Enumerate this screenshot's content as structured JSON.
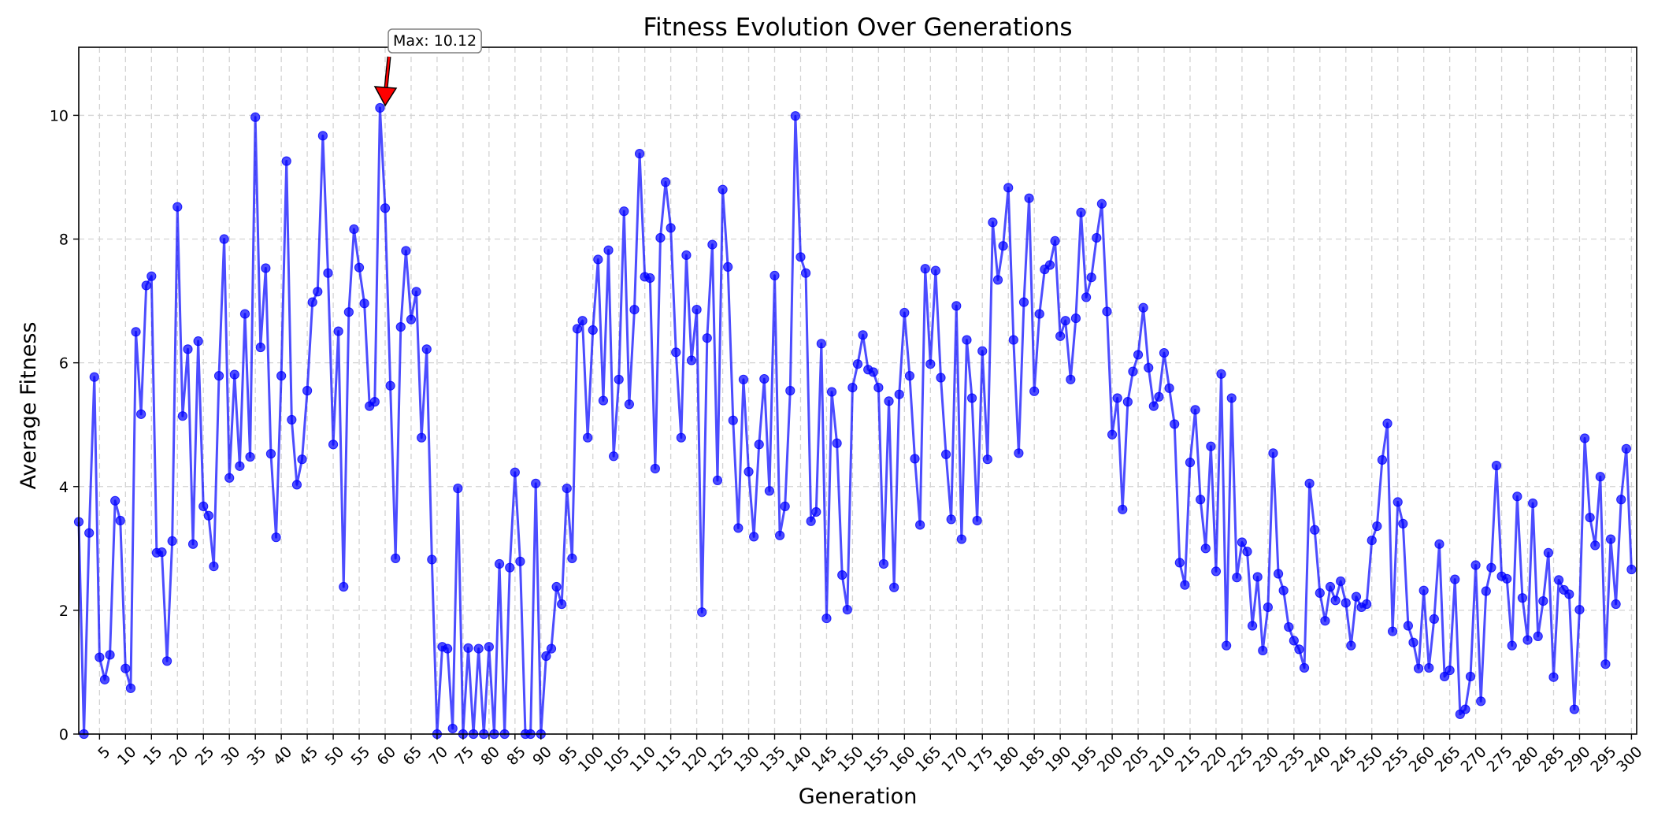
{
  "chart_data": {
    "type": "line",
    "title": "Fitness Evolution Over Generations",
    "xlabel": "Generation",
    "ylabel": "Average Fitness",
    "xlim": [
      1,
      301
    ],
    "ylim": [
      0,
      11.1
    ],
    "xticks": [
      5,
      10,
      15,
      20,
      25,
      30,
      35,
      40,
      45,
      50,
      55,
      60,
      65,
      70,
      75,
      80,
      85,
      90,
      95,
      100,
      105,
      110,
      115,
      120,
      125,
      130,
      135,
      140,
      145,
      150,
      155,
      160,
      165,
      170,
      175,
      180,
      185,
      190,
      195,
      200,
      205,
      210,
      215,
      220,
      225,
      230,
      235,
      240,
      245,
      250,
      255,
      260,
      265,
      270,
      275,
      280,
      285,
      290,
      295,
      300
    ],
    "yticks": [
      0,
      2,
      4,
      6,
      8,
      10
    ],
    "grid": true,
    "x_start": 1,
    "series": [
      {
        "color": "#0000ff",
        "values": [
          3.43,
          0.0,
          3.25,
          5.77,
          1.24,
          0.88,
          1.28,
          3.77,
          3.45,
          1.06,
          0.74,
          6.5,
          5.17,
          7.25,
          7.4,
          2.93,
          2.94,
          1.18,
          3.12,
          8.52,
          5.14,
          6.22,
          3.07,
          6.35,
          3.68,
          3.53,
          2.71,
          5.79,
          8.0,
          4.14,
          5.81,
          4.33,
          6.79,
          4.48,
          9.97,
          6.25,
          7.53,
          4.53,
          3.18,
          5.79,
          9.26,
          5.08,
          4.03,
          4.44,
          5.55,
          6.98,
          7.15,
          9.67,
          7.45,
          4.68,
          6.51,
          2.38,
          6.82,
          8.16,
          7.54,
          6.96,
          5.3,
          5.37,
          10.12,
          8.5,
          5.63,
          2.84,
          6.58,
          7.81,
          6.7,
          7.15,
          4.79,
          6.22,
          2.82,
          0.0,
          1.41,
          1.38,
          0.09,
          3.97,
          0.0,
          1.39,
          0.0,
          1.38,
          0.0,
          1.41,
          0.0,
          2.75,
          0.0,
          2.69,
          4.23,
          2.79,
          0.0,
          0.0,
          4.05,
          0.0,
          1.26,
          1.38,
          2.38,
          2.1,
          3.97,
          2.84,
          6.55,
          6.68,
          4.79,
          6.53,
          7.67,
          5.39,
          7.82,
          4.49,
          5.73,
          8.45,
          5.33,
          6.86,
          9.38,
          7.39,
          7.37,
          4.29,
          8.02,
          8.92,
          8.18,
          6.17,
          4.79,
          7.74,
          6.04,
          6.86,
          1.97,
          6.4,
          7.91,
          4.1,
          8.8,
          7.55,
          5.07,
          3.33,
          5.73,
          4.24,
          3.19,
          4.68,
          5.74,
          3.93,
          7.41,
          3.21,
          3.68,
          5.55,
          9.99,
          7.71,
          7.45,
          3.44,
          3.59,
          6.31,
          1.87,
          5.53,
          4.7,
          2.57,
          2.01,
          5.6,
          5.98,
          6.45,
          5.89,
          5.85,
          5.6,
          2.75,
          5.38,
          2.37,
          5.49,
          6.81,
          5.79,
          4.45,
          3.38,
          7.52,
          5.98,
          7.49,
          5.76,
          4.52,
          3.47,
          6.92,
          3.15,
          6.37,
          5.43,
          3.45,
          6.19,
          4.44,
          8.27,
          7.34,
          7.89,
          8.83,
          6.37,
          4.54,
          6.98,
          8.66,
          5.54,
          6.79,
          7.51,
          7.58,
          7.97,
          6.43,
          6.68,
          5.73,
          6.72,
          8.43,
          7.06,
          7.38,
          8.02,
          8.57,
          6.83,
          4.84,
          5.43,
          3.63,
          5.37,
          5.86,
          6.13,
          6.89,
          5.92,
          5.3,
          5.45,
          6.16,
          5.59,
          5.01,
          2.77,
          2.41,
          4.39,
          5.24,
          3.79,
          3.0,
          4.65,
          2.63,
          5.82,
          1.43,
          5.43,
          2.53,
          3.1,
          2.95,
          1.75,
          2.54,
          1.35,
          2.05,
          4.54,
          2.59,
          2.32,
          1.73,
          1.51,
          1.37,
          1.07,
          4.05,
          3.3,
          2.28,
          1.83,
          2.38,
          2.16,
          2.47,
          2.12,
          1.43,
          2.22,
          2.05,
          2.1,
          3.13,
          3.36,
          4.43,
          5.02,
          1.66,
          3.75,
          3.4,
          1.75,
          1.48,
          1.06,
          2.32,
          1.07,
          1.86,
          3.07,
          0.93,
          1.03,
          2.5,
          0.32,
          0.4,
          0.93,
          2.73,
          0.53,
          2.31,
          2.69,
          4.34,
          2.55,
          2.51,
          1.43,
          3.84,
          2.2,
          1.52,
          3.73,
          1.58,
          2.15,
          2.93,
          0.92,
          2.49,
          2.33,
          2.26,
          0.4,
          2.01,
          4.78,
          3.5,
          3.05,
          4.16,
          1.13,
          3.15,
          2.1,
          3.79,
          4.61,
          2.66
        ]
      }
    ],
    "annotations": [
      {
        "text": "Max: 10.12",
        "x": 60,
        "y": 10.12
      }
    ]
  }
}
